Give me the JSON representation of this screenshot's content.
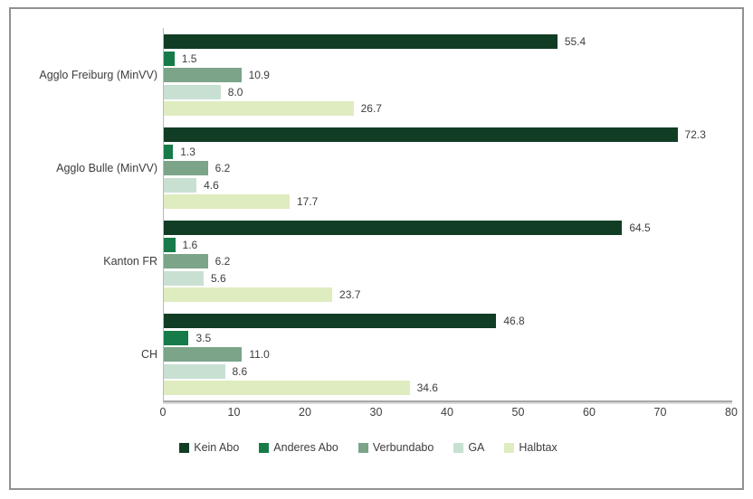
{
  "chart_data": {
    "type": "bar",
    "orientation": "horizontal",
    "title": "",
    "xlabel": "",
    "ylabel": "",
    "categories": [
      "Agglo Freiburg (MinVV)",
      "Agglo Bulle (MinVV)",
      "Kanton FR",
      "CH"
    ],
    "series": [
      {
        "name": "Kein Abo",
        "color": "#113d25",
        "values": [
          55.4,
          72.3,
          64.5,
          46.8
        ]
      },
      {
        "name": "Anderes Abo",
        "color": "#177b49",
        "values": [
          1.5,
          1.3,
          1.6,
          3.5
        ]
      },
      {
        "name": "Verbundabo",
        "color": "#7ca489",
        "values": [
          10.9,
          6.2,
          6.2,
          11.0
        ]
      },
      {
        "name": "GA",
        "color": "#c8e0d2",
        "values": [
          8.0,
          4.6,
          5.6,
          8.6
        ]
      },
      {
        "name": "Halbtax",
        "color": "#dfecc0",
        "values": [
          26.7,
          17.7,
          23.7,
          34.6
        ]
      }
    ],
    "xlim": [
      0,
      80
    ],
    "x_ticks": [
      0,
      10,
      20,
      30,
      40,
      50,
      60,
      70,
      80
    ],
    "value_labels": true,
    "legend_position": "bottom",
    "grid": false
  }
}
